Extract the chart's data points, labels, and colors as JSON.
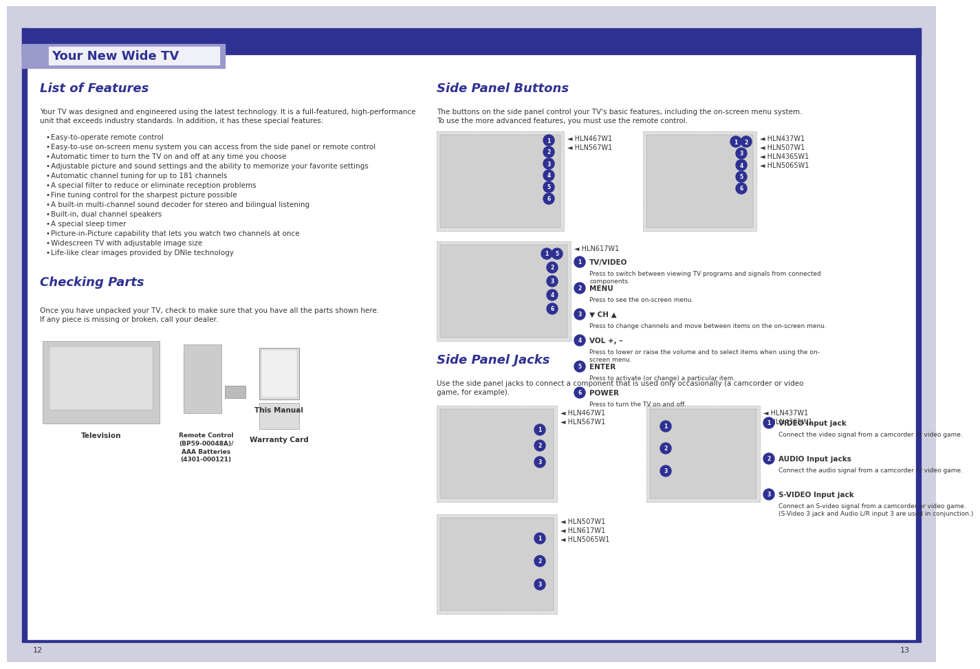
{
  "bg_color": "#ffffff",
  "page_bg": "#e8e8f0",
  "header_bar_color": "#2e3192",
  "header_tab_color": "#9999cc",
  "header_title": "Your New Wide TV",
  "header_title_color": "#2e3192",
  "section_title_color": "#2e3192",
  "body_text_color": "#333333",
  "footer_bar_color": "#2e3192",
  "footer_page_left": "12",
  "footer_page_right": "13",
  "list_of_features_title": "List of Features",
  "list_of_features_intro1": "Your TV was designed and engineered using the latest technology. It is a full-featured, high-performance",
  "list_of_features_intro2": "unit that exceeds industry standards. In addition, it has these special features:",
  "list_of_features_items": [
    "Easy-to-operate remote control",
    "Easy-to-use on-screen menu system you can access from the side panel or remote control",
    "Automatic timer to turn the TV on and off at any time you choose",
    "Adjustable picture and sound settings and the ability to memorize your favorite settings",
    "Automatic channel tuning for up to 181 channels",
    "A special filter to reduce or eliminate reception problems",
    "Fine tuning control for the sharpest picture possible",
    "A built-in multi-channel sound decoder for stereo and bilingual listening",
    "Built-in, dual channel speakers",
    "A special sleep timer",
    "Picture-in-Picture capability that lets you watch two channels at once",
    "Widescreen TV with adjustable image size",
    "Life-like clear images provided by DNIe technology"
  ],
  "checking_parts_title": "Checking Parts",
  "checking_parts_text1": "Once you have unpacked your TV, check to make sure that you have all the parts shown here.",
  "checking_parts_text2": "If any piece is missing or broken, call your dealer.",
  "side_panel_buttons_title": "Side Panel Buttons",
  "spb_intro1": "The buttons on the side panel control your TV's basic features, including the on-screen menu system.",
  "spb_intro2": "To use the more advanced features, you must use the remote control.",
  "side_panel_jacks_title": "Side Panel Jacks",
  "spj_intro1": "Use the side panel jacks to connect a component that is used only occasionally (a camcorder or video",
  "spj_intro2": "game, for example).",
  "button_labels": [
    {
      "num": "1",
      "label": "TV/VIDEO",
      "desc": "Press to switch between viewing TV programs and signals from connected\ncomponents."
    },
    {
      "num": "2",
      "label": "MENU",
      "desc": "Press to see the on-screen menu."
    },
    {
      "num": "3",
      "label": "▼ CH ▲",
      "desc": "Press to change channels and move between items on the on-screen menu."
    },
    {
      "num": "4",
      "label": "VOL +, –",
      "desc": "Press to lower or raise the volume and to select items when using the on-\nscreen menu."
    },
    {
      "num": "5",
      "label": "ENTER",
      "desc": "Press to activate (or change) a particular item."
    },
    {
      "num": "6",
      "label": "POWER",
      "desc": "Press to turn the TV on and off."
    }
  ],
  "jack_labels": [
    {
      "num": "1",
      "label": "VIDEO Input jack",
      "desc": "Connect the video signal from a camcorder or video game."
    },
    {
      "num": "2",
      "label": "AUDIO Input jacks",
      "desc": "Connect the audio signal from a camcorder or video game."
    },
    {
      "num": "3",
      "label": "S-VIDEO Input jack",
      "desc": "Connect an S-video signal from a camcorder or video game.\n(S-Video 3 jack and Audio L/R input 3 are used in conjunction.)"
    }
  ]
}
